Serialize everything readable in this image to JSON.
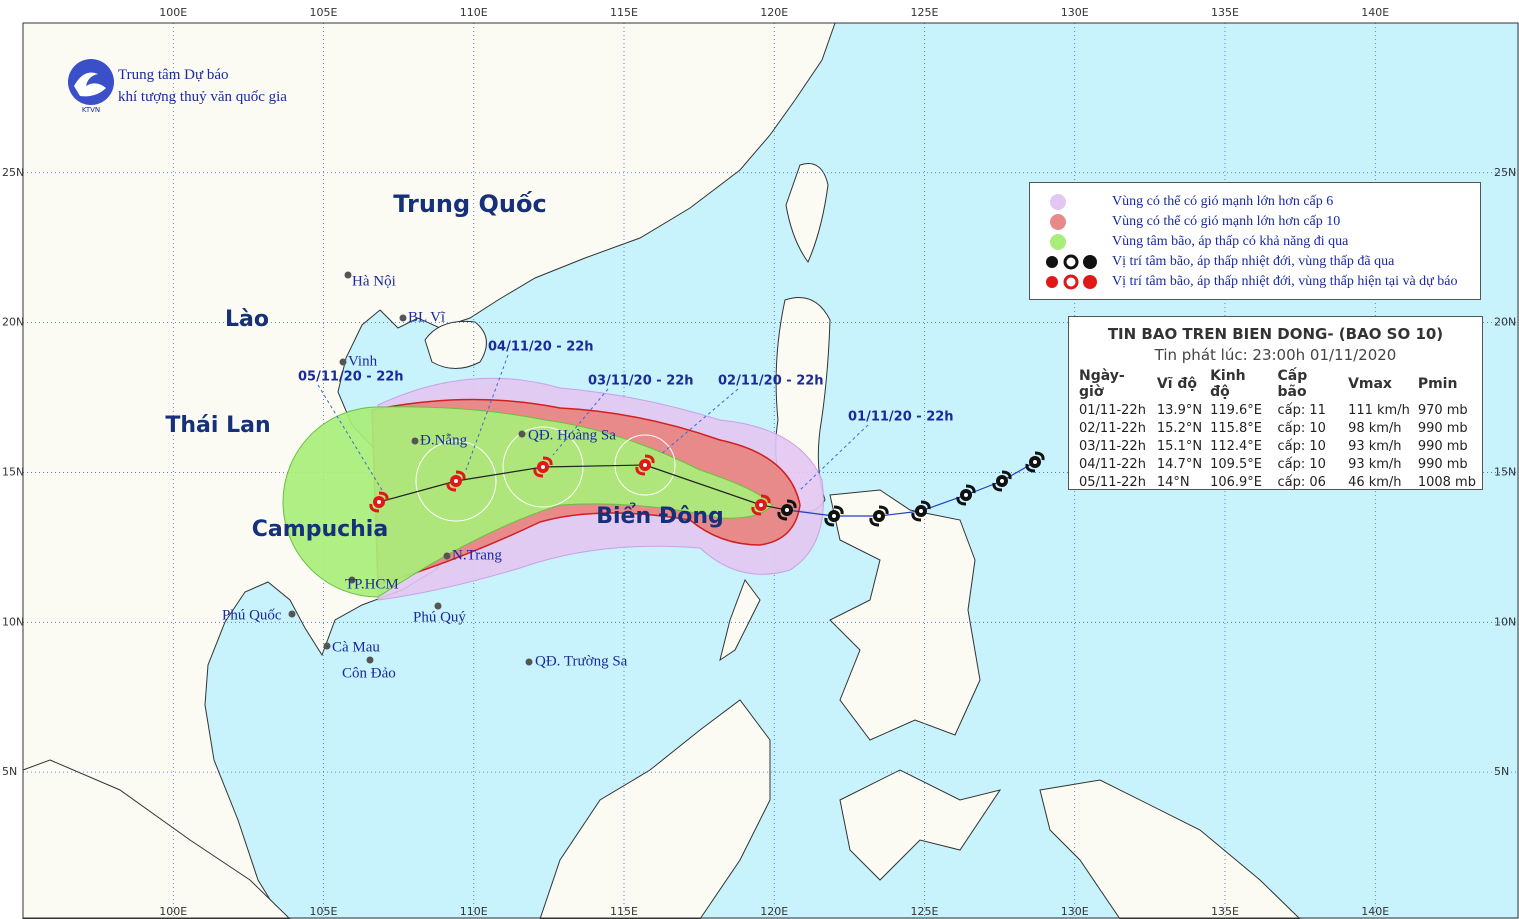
{
  "header": {
    "org_line1": "Trung tâm Dự báo",
    "org_line2": "khí tượng thuỷ văn quốc gia",
    "logo_text": "KTVN"
  },
  "axes": {
    "lon_ticks": [
      {
        "value": 100,
        "label": "100E"
      },
      {
        "value": 105,
        "label": "105E"
      },
      {
        "value": 110,
        "label": "110E"
      },
      {
        "value": 115,
        "label": "115E"
      },
      {
        "value": 120,
        "label": "120E"
      },
      {
        "value": 125,
        "label": "125E"
      },
      {
        "value": 130,
        "label": "130E"
      },
      {
        "value": 135,
        "label": "135E"
      },
      {
        "value": 140,
        "label": "140E"
      }
    ],
    "lat_ticks": [
      {
        "value": 5,
        "label": "5N"
      },
      {
        "value": 10,
        "label": "10N"
      },
      {
        "value": 15,
        "label": "15N"
      },
      {
        "value": 20,
        "label": "20N"
      },
      {
        "value": 25,
        "label": "25N"
      }
    ]
  },
  "countries": [
    "Trung Quốc",
    "Lào",
    "Thái Lan",
    "Campuchia",
    "Biển Đông"
  ],
  "places": [
    "Hà Nội",
    "BL Vĩ",
    "Vinh",
    "Đ.Nẵng",
    "QĐ. Hoàng Sa",
    "N.Trang",
    "TP.HCM",
    "Phú Quốc",
    "Phú Quý",
    "Cà Mau",
    "Côn Đảo",
    "QĐ. Trường Sa"
  ],
  "time_stamps": [
    "01/11/20 - 22h",
    "02/11/20 - 22h",
    "03/11/20 - 22h",
    "04/11/20 - 22h",
    "05/11/20 - 22h"
  ],
  "legend": [
    "Vùng có thể có gió mạnh lớn hơn cấp 6",
    "Vùng có thể có gió mạnh lớn hơn cấp 10",
    "Vùng tâm bão, áp thấp có khả năng đi qua",
    "Vị trí tâm bão, áp thấp nhiệt đới, vùng thấp đã qua",
    "Vị trí tâm bão, áp thấp nhiệt đới, vùng thấp hiện tại và dự báo"
  ],
  "info": {
    "title": "TIN BAO TREN BIEN DONG- (BAO SO 10)",
    "subtitle": "Tin phát lúc: 23:00h 01/11/2020",
    "columns": [
      "Ngày-giờ",
      "Vĩ độ",
      "Kinh độ",
      "Cấp bão",
      "Vmax",
      "Pmin"
    ],
    "rows": [
      [
        "01/11-22h",
        "13.9°N",
        "119.6°E",
        "cấp: 11",
        "111 km/h",
        "970 mb"
      ],
      [
        "02/11-22h",
        "15.2°N",
        "115.8°E",
        "cấp: 10",
        "98 km/h",
        "990 mb"
      ],
      [
        "03/11-22h",
        "15.1°N",
        "112.4°E",
        "cấp: 10",
        "93 km/h",
        "990 mb"
      ],
      [
        "04/11-22h",
        "14.7°N",
        "109.5°E",
        "cấp: 10",
        "93 km/h",
        "990 mb"
      ],
      [
        "05/11-22h",
        "14°N",
        "106.9°E",
        "cấp: 06",
        "46 km/h",
        "1008 mb"
      ]
    ]
  }
}
